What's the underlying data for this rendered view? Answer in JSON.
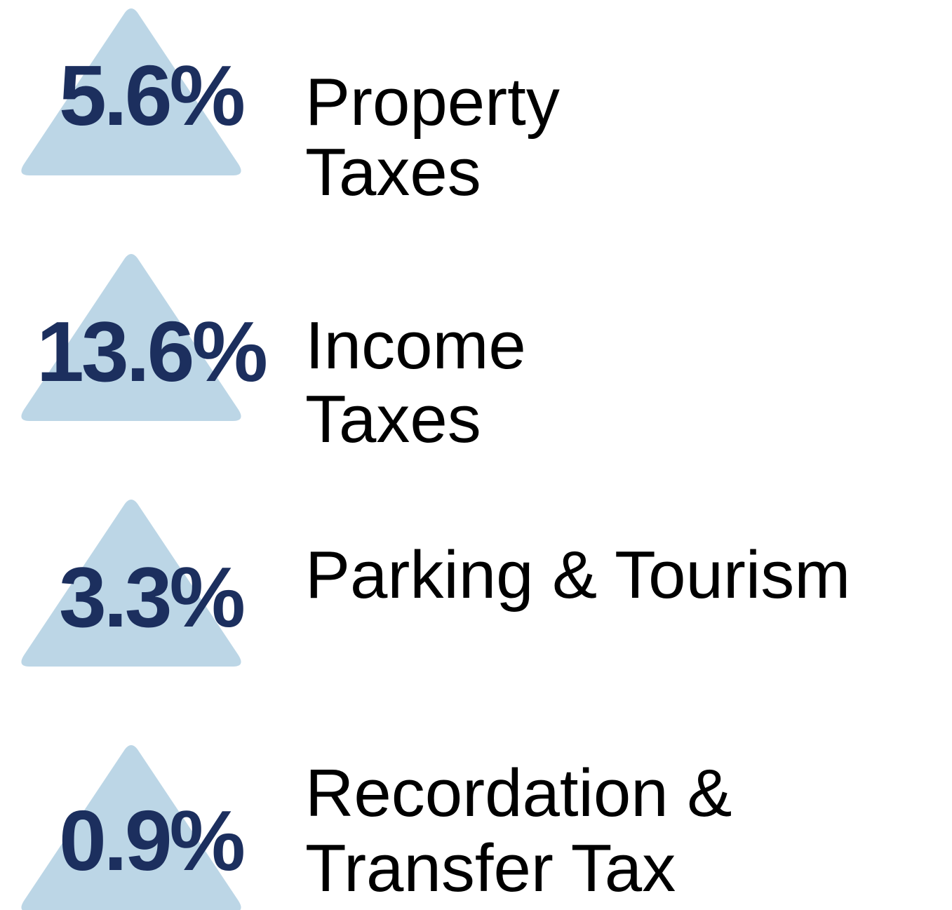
{
  "items": [
    {
      "value": "5.6%",
      "label": [
        "Property",
        "Taxes"
      ]
    },
    {
      "value": "13.6%",
      "label": [
        "Income",
        "Taxes"
      ]
    },
    {
      "value": "3.3%",
      "label": [
        "Parking & Tourism"
      ]
    },
    {
      "value": "0.9%",
      "label": [
        "Recordation &",
        "Transfer Tax"
      ]
    }
  ]
}
